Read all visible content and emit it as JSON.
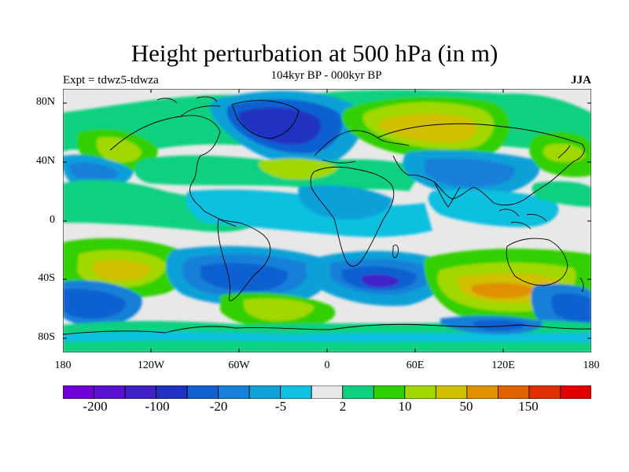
{
  "title": "Height perturbation at 500 hPa (in m)",
  "subtitle": "104kyr BP - 000kyr BP",
  "left_label": "Expt = tdwz5-tdwza",
  "right_label": "JJA",
  "y_axis_labels": [
    "80N",
    "40N",
    "0",
    "40S",
    "80S"
  ],
  "x_axis_labels": [
    "180",
    "120W",
    "60W",
    "0",
    "60E",
    "120E",
    "180"
  ],
  "colorbar": {
    "colors": [
      "#7000d8",
      "#5a10d0",
      "#4020c8",
      "#2030c0",
      "#1060d0",
      "#1880d8",
      "#10a0d8",
      "#10c0e0",
      "#e8e8e8",
      "#10d080",
      "#30d000",
      "#a0d800",
      "#d0c000",
      "#e09000",
      "#e06000",
      "#e03000",
      "#e00000"
    ],
    "labels": [
      "-200",
      "-100",
      "-20",
      "-5",
      "2",
      "10",
      "50",
      "150"
    ]
  },
  "map": {
    "projection": "cylindrical equidistant",
    "lon_range": [
      -180,
      180
    ],
    "lat_range": [
      -90,
      90
    ],
    "background_color": "#e8e8e8",
    "coastlines": "black"
  }
}
